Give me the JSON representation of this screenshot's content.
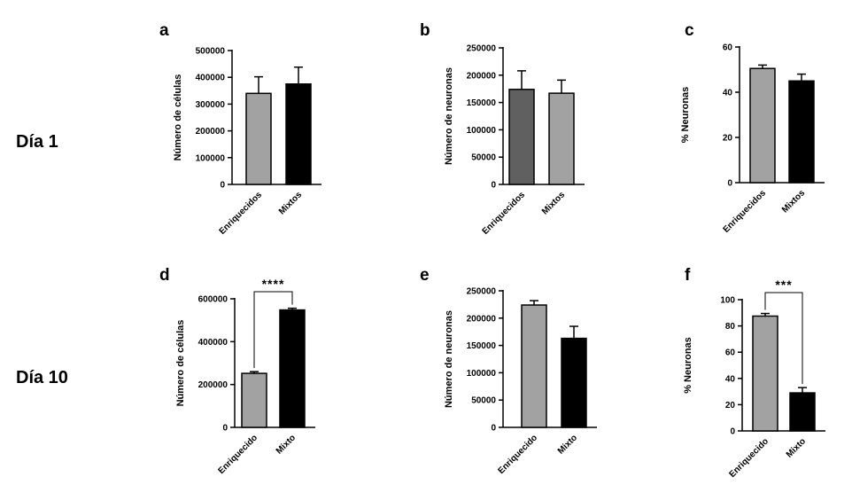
{
  "rows": [
    {
      "label": "Día 1"
    },
    {
      "label": "Día 10"
    }
  ],
  "colors": {
    "light_gray": "#a2a2a2",
    "dark_gray": "#606060",
    "black": "#000000"
  },
  "chart_data": [
    {
      "panel": "a",
      "type": "bar",
      "categories": [
        "Enriquecidos",
        "Mixtos"
      ],
      "values": [
        340000,
        375000
      ],
      "errors": [
        62000,
        63000
      ],
      "bar_colors": [
        "#a2a2a2",
        "#000000"
      ],
      "ylabel": "Número de células",
      "ylim": [
        0,
        500000
      ],
      "yticks": [
        0,
        100000,
        200000,
        300000,
        400000,
        500000
      ],
      "significance": null
    },
    {
      "panel": "b",
      "type": "bar",
      "categories": [
        "Enriquecidos",
        "Mixtos"
      ],
      "values": [
        174000,
        167000
      ],
      "errors": [
        34000,
        24000
      ],
      "bar_colors": [
        "#606060",
        "#a2a2a2"
      ],
      "ylabel": "Número de neuronas",
      "ylim": [
        0,
        250000
      ],
      "yticks": [
        0,
        50000,
        100000,
        150000,
        200000,
        250000
      ],
      "significance": null
    },
    {
      "panel": "c",
      "type": "bar",
      "categories": [
        "Enriquecidos",
        "Mixtos"
      ],
      "values": [
        50.5,
        45
      ],
      "errors": [
        1.5,
        3
      ],
      "bar_colors": [
        "#a2a2a2",
        "#000000"
      ],
      "ylabel": "% Neuronas",
      "ylim": [
        0,
        60
      ],
      "yticks": [
        0,
        20,
        40,
        60
      ],
      "significance": null
    },
    {
      "panel": "d",
      "type": "bar",
      "categories": [
        "Enriquecido",
        "Mixto"
      ],
      "values": [
        252000,
        548000
      ],
      "errors": [
        8000,
        8000
      ],
      "bar_colors": [
        "#a2a2a2",
        "#000000"
      ],
      "ylabel": "Número de células",
      "ylim": [
        0,
        600000
      ],
      "yticks": [
        0,
        200000,
        400000,
        600000
      ],
      "significance": "****"
    },
    {
      "panel": "e",
      "type": "bar",
      "categories": [
        "Enriquecido",
        "Mixto"
      ],
      "values": [
        224000,
        163000
      ],
      "errors": [
        8000,
        22000
      ],
      "bar_colors": [
        "#a2a2a2",
        "#000000"
      ],
      "ylabel": "Número de neuronas",
      "ylim": [
        0,
        250000
      ],
      "yticks": [
        0,
        50000,
        100000,
        150000,
        200000,
        250000
      ],
      "significance": null
    },
    {
      "panel": "f",
      "type": "bar",
      "categories": [
        "Enriquecido",
        "Mixto"
      ],
      "values": [
        87.5,
        29
      ],
      "errors": [
        2,
        4
      ],
      "bar_colors": [
        "#a2a2a2",
        "#000000"
      ],
      "ylabel": "% Neuronas",
      "ylim": [
        0,
        100
      ],
      "yticks": [
        0,
        20,
        40,
        60,
        80,
        100
      ],
      "significance": "***"
    }
  ]
}
